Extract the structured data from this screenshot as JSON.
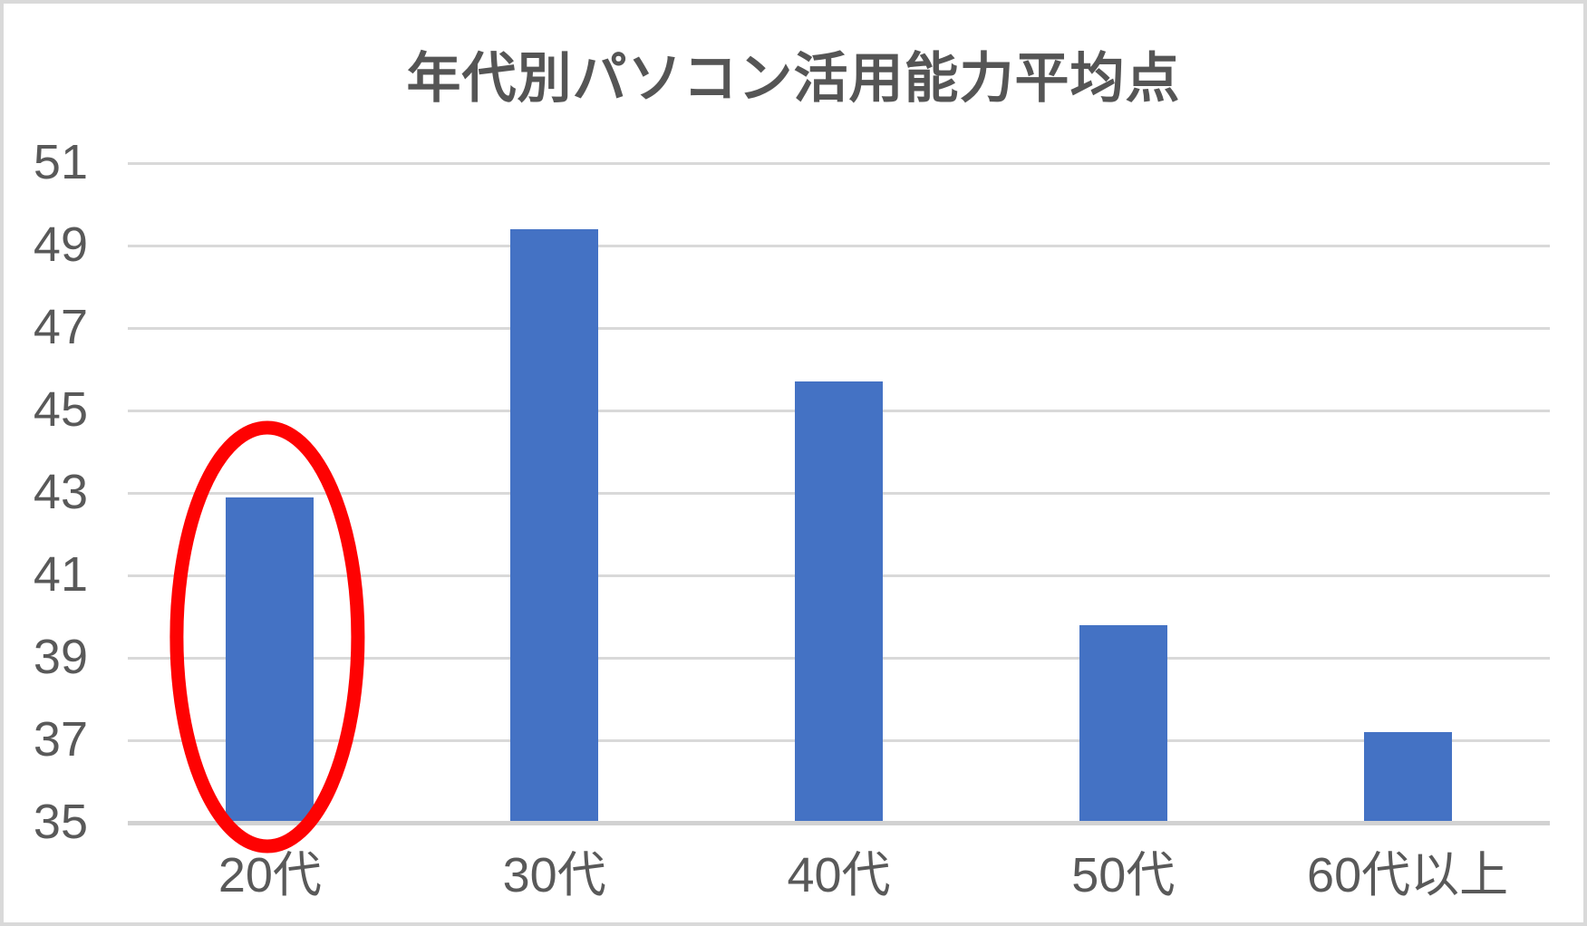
{
  "chart_data": {
    "type": "bar",
    "title": "年代別パソコン活用能力平均点",
    "categories": [
      "20代",
      "30代",
      "40代",
      "50代",
      "60代以上"
    ],
    "values": [
      42.9,
      49.4,
      45.7,
      39.8,
      37.2
    ],
    "xlabel": "",
    "ylabel": "",
    "ylim": [
      35,
      51
    ],
    "yticks": [
      35,
      37,
      39,
      41,
      43,
      45,
      47,
      49,
      51
    ],
    "grid": true,
    "legend": "none",
    "annotation": {
      "shape": "ellipse",
      "target_category": "20代"
    }
  },
  "colors": {
    "bar": "#4472C4",
    "grid": "#D9D9D9",
    "axis_line": "#D2D2D2",
    "tick_text": "#595959",
    "title_text": "#555555",
    "annotation": "#FE0202",
    "background": "#FFFFFF",
    "border": "#D9D9D9"
  }
}
